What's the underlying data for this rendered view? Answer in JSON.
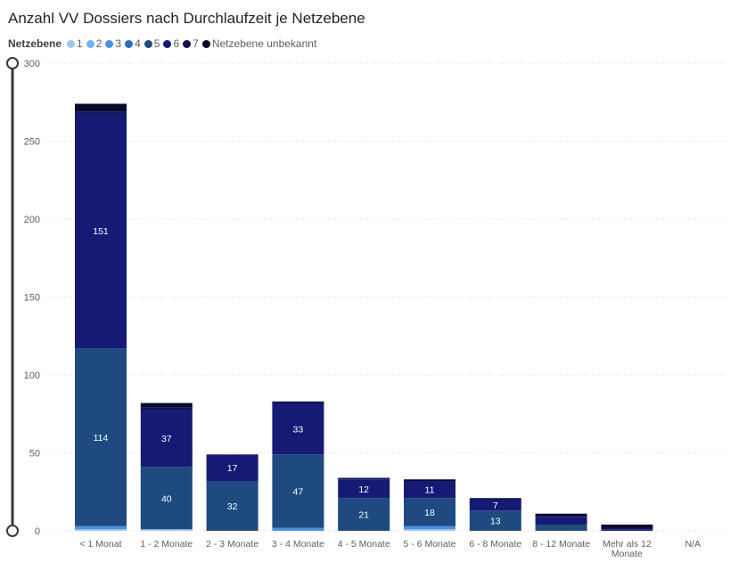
{
  "title": "Anzahl VV Dossiers nach Durchlaufzeit je Netzebene",
  "legend": {
    "title": "Netzebene",
    "items": [
      {
        "label": "1",
        "color": "#9ec8f2"
      },
      {
        "label": "2",
        "color": "#6fb2ee"
      },
      {
        "label": "3",
        "color": "#4a90e2"
      },
      {
        "label": "4",
        "color": "#2a6cbf"
      },
      {
        "label": "5",
        "color": "#1e4a80"
      },
      {
        "label": "6",
        "color": "#161a75"
      },
      {
        "label": "7",
        "color": "#0f124f"
      },
      {
        "label": "Netzebene unbekannt",
        "color": "#070a2c"
      }
    ]
  },
  "chart_data": {
    "type": "bar",
    "stacked": true,
    "categories": [
      [
        "< 1 Monat"
      ],
      [
        "1 - 2 Monate"
      ],
      [
        "2 - 3 Monate"
      ],
      [
        "3 - 4 Monate"
      ],
      [
        "4 - 5 Monate"
      ],
      [
        "5 - 6 Monate"
      ],
      [
        "6 - 8 Monate"
      ],
      [
        "8 - 12 Monate"
      ],
      [
        "Mehr als 12",
        "Monate"
      ],
      [
        "N/A"
      ]
    ],
    "series": [
      {
        "name": "1",
        "color": "#9ec8f2",
        "values": [
          1,
          1,
          0,
          0,
          0,
          1,
          0,
          0,
          0,
          0
        ]
      },
      {
        "name": "2",
        "color": "#6fb2ee",
        "values": [
          0,
          0,
          0,
          0,
          0,
          0,
          0,
          0,
          0,
          0
        ]
      },
      {
        "name": "3",
        "color": "#4a90e2",
        "values": [
          2,
          0,
          0,
          2,
          0,
          2,
          0,
          0,
          0,
          0
        ]
      },
      {
        "name": "4",
        "color": "#2a6cbf",
        "values": [
          0,
          0,
          0,
          0,
          0,
          0,
          0,
          0,
          0,
          0
        ]
      },
      {
        "name": "5",
        "color": "#1e4a80",
        "values": [
          114,
          40,
          32,
          47,
          21,
          18,
          13,
          4,
          0,
          0
        ]
      },
      {
        "name": "6",
        "color": "#161a75",
        "values": [
          151,
          37,
          17,
          33,
          12,
          11,
          7,
          5,
          1,
          0
        ]
      },
      {
        "name": "7",
        "color": "#0f124f",
        "values": [
          1,
          1,
          0,
          1,
          1,
          0,
          1,
          1,
          1,
          0
        ]
      },
      {
        "name": "Netzebene unbekannt",
        "color": "#070a2c",
        "values": [
          5,
          3,
          0,
          0,
          0,
          1,
          0,
          1,
          2,
          0
        ]
      }
    ],
    "data_labels": [
      {
        "category_index": 0,
        "series": "5",
        "text": "114"
      },
      {
        "category_index": 0,
        "series": "6",
        "text": "151"
      },
      {
        "category_index": 1,
        "series": "5",
        "text": "40"
      },
      {
        "category_index": 1,
        "series": "6",
        "text": "37"
      },
      {
        "category_index": 2,
        "series": "5",
        "text": "32"
      },
      {
        "category_index": 2,
        "series": "6",
        "text": "17"
      },
      {
        "category_index": 3,
        "series": "5",
        "text": "47"
      },
      {
        "category_index": 3,
        "series": "6",
        "text": "33"
      },
      {
        "category_index": 4,
        "series": "5",
        "text": "21"
      },
      {
        "category_index": 4,
        "series": "6",
        "text": "12"
      },
      {
        "category_index": 5,
        "series": "5",
        "text": "18"
      },
      {
        "category_index": 5,
        "series": "6",
        "text": "11"
      },
      {
        "category_index": 6,
        "series": "5",
        "text": "13"
      },
      {
        "category_index": 6,
        "series": "6",
        "text": "7"
      }
    ],
    "yticks": [
      "0",
      "50",
      "100",
      "150",
      "200",
      "250",
      "300"
    ],
    "ylim": [
      0,
      300
    ],
    "grid": true,
    "legend_position": "top-left",
    "slider": {
      "min": 0,
      "max": 300
    }
  }
}
